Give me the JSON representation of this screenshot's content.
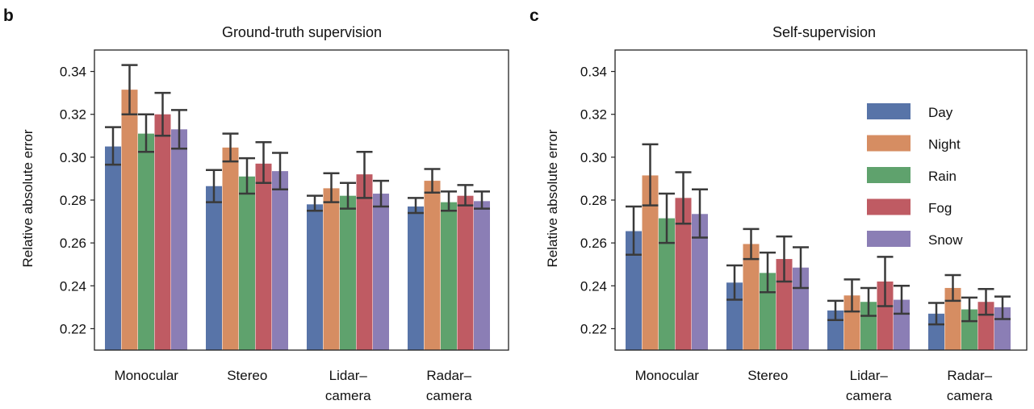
{
  "colors": {
    "Day": "#5874a8",
    "Night": "#d68d62",
    "Rain": "#5fa26d",
    "Fog": "#bf5b63",
    "Snow": "#8b7eb5",
    "errorbar": "#3a3a3a",
    "axis": "#222222"
  },
  "chart_data": [
    {
      "type": "bar",
      "panel": "b",
      "title": "Ground-truth supervision",
      "xlabel": "",
      "ylabel": "Relative absolute error",
      "ylim": [
        0.21,
        0.35
      ],
      "yticks": [
        "0.22",
        "0.24",
        "0.26",
        "0.28",
        "0.30",
        "0.32",
        "0.34"
      ],
      "grid": false,
      "categories": [
        [
          "Monocular"
        ],
        [
          "Stereo"
        ],
        [
          "Lidar–",
          "camera"
        ],
        [
          "Radar–",
          "camera"
        ]
      ],
      "series": [
        {
          "name": "Day",
          "values": [
            0.305,
            0.2865,
            0.278,
            0.277
          ],
          "err": [
            [
              0.2965,
              0.314
            ],
            [
              0.279,
              0.294
            ],
            [
              0.275,
              0.282
            ],
            [
              0.274,
              0.281
            ]
          ]
        },
        {
          "name": "Night",
          "values": [
            0.3315,
            0.3045,
            0.2855,
            0.289
          ],
          "err": [
            [
              0.32,
              0.343
            ],
            [
              0.298,
              0.311
            ],
            [
              0.279,
              0.2925
            ],
            [
              0.2835,
              0.2945
            ]
          ]
        },
        {
          "name": "Rain",
          "values": [
            0.311,
            0.291,
            0.282,
            0.279
          ],
          "err": [
            [
              0.3025,
              0.32
            ],
            [
              0.283,
              0.2995
            ],
            [
              0.276,
              0.288
            ],
            [
              0.275,
              0.284
            ]
          ]
        },
        {
          "name": "Fog",
          "values": [
            0.32,
            0.297,
            0.292,
            0.282
          ],
          "err": [
            [
              0.31,
              0.33
            ],
            [
              0.288,
              0.307
            ],
            [
              0.281,
              0.3025
            ],
            [
              0.2775,
              0.287
            ]
          ]
        },
        {
          "name": "Snow",
          "values": [
            0.313,
            0.2935,
            0.283,
            0.2795
          ],
          "err": [
            [
              0.304,
              0.322
            ],
            [
              0.285,
              0.302
            ],
            [
              0.277,
              0.289
            ],
            [
              0.276,
              0.284
            ]
          ]
        }
      ]
    },
    {
      "type": "bar",
      "panel": "c",
      "title": "Self-supervision",
      "xlabel": "",
      "ylabel": "Relative absolute error",
      "ylim": [
        0.21,
        0.35
      ],
      "yticks": [
        "0.22",
        "0.24",
        "0.26",
        "0.28",
        "0.30",
        "0.32",
        "0.34"
      ],
      "grid": false,
      "legend_position": "right",
      "categories": [
        [
          "Monocular"
        ],
        [
          "Stereo"
        ],
        [
          "Lidar–",
          "camera"
        ],
        [
          "Radar–",
          "camera"
        ]
      ],
      "series": [
        {
          "name": "Day",
          "values": [
            0.2655,
            0.2415,
            0.2285,
            0.227
          ],
          "err": [
            [
              0.2545,
              0.277
            ],
            [
              0.2335,
              0.2495
            ],
            [
              0.224,
              0.233
            ],
            [
              0.222,
              0.232
            ]
          ]
        },
        {
          "name": "Night",
          "values": [
            0.2915,
            0.2595,
            0.2355,
            0.239
          ],
          "err": [
            [
              0.2775,
              0.306
            ],
            [
              0.2525,
              0.2665
            ],
            [
              0.228,
              0.243
            ],
            [
              0.233,
              0.245
            ]
          ]
        },
        {
          "name": "Rain",
          "values": [
            0.2715,
            0.246,
            0.2325,
            0.229
          ],
          "err": [
            [
              0.26,
              0.283
            ],
            [
              0.237,
              0.2555
            ],
            [
              0.226,
              0.239
            ],
            [
              0.2235,
              0.2345
            ]
          ]
        },
        {
          "name": "Fog",
          "values": [
            0.281,
            0.2525,
            0.242,
            0.2325
          ],
          "err": [
            [
              0.269,
              0.293
            ],
            [
              0.242,
              0.263
            ],
            [
              0.2305,
              0.2535
            ],
            [
              0.2265,
              0.2385
            ]
          ]
        },
        {
          "name": "Snow",
          "values": [
            0.2735,
            0.2485,
            0.2335,
            0.23
          ],
          "err": [
            [
              0.2625,
              0.285
            ],
            [
              0.239,
              0.258
            ],
            [
              0.227,
              0.24
            ],
            [
              0.2245,
              0.235
            ]
          ]
        }
      ]
    }
  ]
}
